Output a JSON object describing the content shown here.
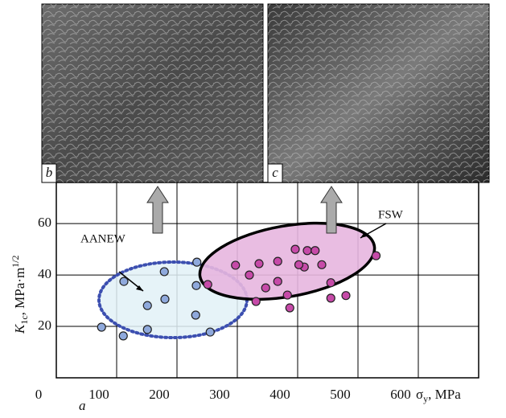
{
  "chart_data": {
    "type": "scatter",
    "panel_labels": [
      "a",
      "b",
      "c"
    ],
    "ylabel_parts": [
      "K",
      "1c",
      ", MPa·m",
      "1/2"
    ],
    "xlabel_parts": [
      "σ",
      "y",
      ", MPa"
    ],
    "xlim": [
      0,
      700
    ],
    "xticks": [
      0,
      100,
      200,
      300,
      400,
      500,
      600
    ],
    "ylim": [
      0,
      76
    ],
    "yticks": [
      20,
      40,
      60
    ],
    "grid": true,
    "series": [
      {
        "name": "AANEW",
        "color": "#8fa9dc",
        "x": [
          75,
          111,
          112,
          151,
          179,
          180,
          151,
          233,
          232,
          231,
          255
        ],
        "values": [
          19.7,
          16.3,
          37.5,
          28.1,
          41.3,
          30.6,
          18.8,
          45,
          35.9,
          24.4,
          17.8
        ]
      },
      {
        "name": "FSW",
        "color": "#c64aa8",
        "x": [
          251,
          297,
          336,
          320,
          331,
          347,
          367,
          367,
          383,
          387,
          411,
          396,
          416,
          429,
          402,
          440,
          480,
          530,
          455,
          455
        ],
        "values": [
          36.3,
          43.8,
          44.4,
          40,
          29.7,
          35,
          45.3,
          37.5,
          32.2,
          27.2,
          43.1,
          50,
          49.5,
          49.5,
          44,
          44,
          32,
          47.5,
          37,
          31
        ]
      }
    ]
  }
}
